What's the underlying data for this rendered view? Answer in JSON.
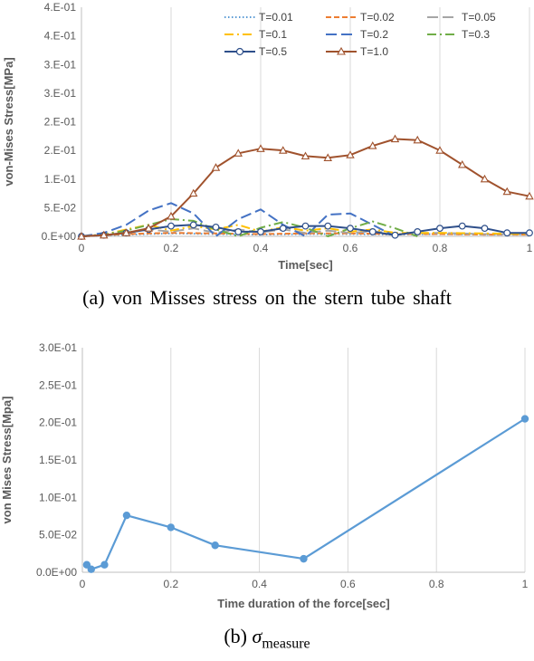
{
  "chart_data": [
    {
      "type": "line",
      "xlabel": "Time[sec]",
      "ylabel": "von-Mises Stress[MPa]",
      "xlim": [
        0,
        1
      ],
      "ylim": [
        0,
        0.4
      ],
      "xticks": [
        "0",
        "0.2",
        "0.4",
        "0.6",
        "0.8",
        "1"
      ],
      "xtick_values": [
        0,
        0.2,
        0.4,
        0.6,
        0.8,
        1.0
      ],
      "yticks": [
        "0.E+00",
        "5.E-02",
        "1.E-01",
        "2.E-01",
        "2.E-01",
        "3.E-01",
        "3.E-01",
        "4.E-01",
        "4.E-01"
      ],
      "ytick_values": [
        0,
        0.05,
        0.1,
        0.15,
        0.2,
        0.25,
        0.3,
        0.35,
        0.4
      ],
      "grid": "vertical",
      "legend": "top-right",
      "series": [
        {
          "name": "T=0.01",
          "color": "#5b9bd5",
          "style": "dotted",
          "x": [
            0,
            0.1,
            0.2,
            0.3,
            0.4,
            0.5,
            0.6,
            0.7,
            0.8,
            0.9,
            1.0
          ],
          "y": [
            0,
            0.003,
            0.005,
            0.004,
            0.003,
            0.004,
            0.004,
            0.003,
            0.004,
            0.003,
            0.003
          ]
        },
        {
          "name": "T=0.02",
          "color": "#ed7d31",
          "style": "dashed",
          "x": [
            0,
            0.1,
            0.2,
            0.3,
            0.4,
            0.5,
            0.6,
            0.7,
            0.8,
            0.9,
            1.0
          ],
          "y": [
            0,
            0.004,
            0.006,
            0.005,
            0.004,
            0.005,
            0.005,
            0.004,
            0.004,
            0.003,
            0.003
          ]
        },
        {
          "name": "T=0.05",
          "color": "#a5a5a5",
          "style": "longdash",
          "x": [
            0,
            0.1,
            0.15,
            0.2,
            0.25,
            0.3,
            0.35,
            0.4,
            0.45,
            0.5,
            0.55,
            0.6,
            0.65,
            0.7,
            0.8,
            0.9,
            1.0
          ],
          "y": [
            0,
            0.006,
            0.012,
            0.008,
            0.014,
            0.006,
            0.012,
            0.007,
            0.012,
            0.006,
            0.01,
            0.006,
            0.009,
            0.005,
            0.006,
            0.004,
            0.004
          ]
        },
        {
          "name": "T=0.1",
          "color": "#ffc000",
          "style": "dashdot",
          "x": [
            0,
            0.05,
            0.1,
            0.15,
            0.2,
            0.25,
            0.3,
            0.35,
            0.4,
            0.45,
            0.5,
            0.55,
            0.6,
            0.65,
            0.7,
            0.8,
            0.9,
            1.0
          ],
          "y": [
            0,
            0.003,
            0.012,
            0.02,
            0.01,
            0.018,
            0.012,
            0.02,
            0.008,
            0.016,
            0.01,
            0.014,
            0.008,
            0.012,
            0.006,
            0.006,
            0.005,
            0.004
          ]
        },
        {
          "name": "T=0.2",
          "color": "#4472c4",
          "style": "longdash",
          "x": [
            0,
            0.05,
            0.1,
            0.15,
            0.2,
            0.25,
            0.3,
            0.35,
            0.4,
            0.45,
            0.5,
            0.55,
            0.6,
            0.65,
            0.7
          ],
          "y": [
            0,
            0.006,
            0.02,
            0.045,
            0.058,
            0.04,
            0.0,
            0.03,
            0.047,
            0.02,
            0.0,
            0.038,
            0.04,
            0.02,
            0.0
          ]
        },
        {
          "name": "T=0.3",
          "color": "#70ad47",
          "style": "dashdot",
          "x": [
            0,
            0.05,
            0.1,
            0.15,
            0.2,
            0.25,
            0.3,
            0.35,
            0.4,
            0.45,
            0.5,
            0.55,
            0.6,
            0.65,
            0.7,
            0.75
          ],
          "y": [
            0,
            0.003,
            0.01,
            0.02,
            0.03,
            0.027,
            0.012,
            0.0,
            0.015,
            0.025,
            0.015,
            0.0,
            0.014,
            0.026,
            0.014,
            0.0
          ]
        },
        {
          "name": "T=0.5",
          "color": "#2e4f8a",
          "style": "solid",
          "marker": "circle",
          "x": [
            0,
            0.05,
            0.1,
            0.15,
            0.2,
            0.25,
            0.3,
            0.35,
            0.4,
            0.45,
            0.5,
            0.55,
            0.6,
            0.65,
            0.7,
            0.75,
            0.8,
            0.85,
            0.9,
            0.95,
            1.0
          ],
          "y": [
            0,
            0.002,
            0.006,
            0.012,
            0.018,
            0.02,
            0.016,
            0.008,
            0.008,
            0.014,
            0.018,
            0.018,
            0.014,
            0.008,
            0.002,
            0.008,
            0.014,
            0.018,
            0.014,
            0.006,
            0.006
          ]
        },
        {
          "name": "T=1.0",
          "color": "#a0522d",
          "style": "solid",
          "marker": "triangle",
          "x": [
            0,
            0.05,
            0.1,
            0.15,
            0.2,
            0.25,
            0.3,
            0.35,
            0.4,
            0.45,
            0.5,
            0.55,
            0.6,
            0.65,
            0.7,
            0.75,
            0.8,
            0.85,
            0.9,
            0.95,
            1.0
          ],
          "y": [
            0,
            0.002,
            0.006,
            0.014,
            0.035,
            0.075,
            0.12,
            0.145,
            0.153,
            0.15,
            0.14,
            0.137,
            0.142,
            0.158,
            0.17,
            0.168,
            0.15,
            0.125,
            0.1,
            0.078,
            0.07
          ]
        }
      ]
    },
    {
      "type": "line",
      "xlabel": "Time duration of the force[sec]",
      "ylabel": "von Mises Stress[Mpa]",
      "xlim": [
        0,
        1
      ],
      "ylim": [
        0,
        0.3
      ],
      "xticks": [
        "0",
        "0.2",
        "0.4",
        "0.6",
        "0.8",
        "1"
      ],
      "xtick_values": [
        0,
        0.2,
        0.4,
        0.6,
        0.8,
        1.0
      ],
      "yticks": [
        "0.0E+00",
        "5.0E-02",
        "1.0E-01",
        "1.5E-01",
        "2.0E-01",
        "2.5E-01",
        "3.0E-01"
      ],
      "ytick_values": [
        0,
        0.05,
        0.1,
        0.15,
        0.2,
        0.25,
        0.3
      ],
      "grid": "vertical",
      "series": [
        {
          "color": "#5b9bd5",
          "marker": "circle",
          "x": [
            0.01,
            0.02,
            0.05,
            0.1,
            0.2,
            0.3,
            0.5,
            1.0
          ],
          "y": [
            0.01,
            0.004,
            0.01,
            0.076,
            0.06,
            0.036,
            0.018,
            0.205
          ]
        }
      ]
    }
  ],
  "captions": {
    "a": "(a) von Misses stress on the stern tube shaft",
    "b_prefix": "(b)",
    "b_symbol": "σ",
    "b_subscript": "measure"
  }
}
